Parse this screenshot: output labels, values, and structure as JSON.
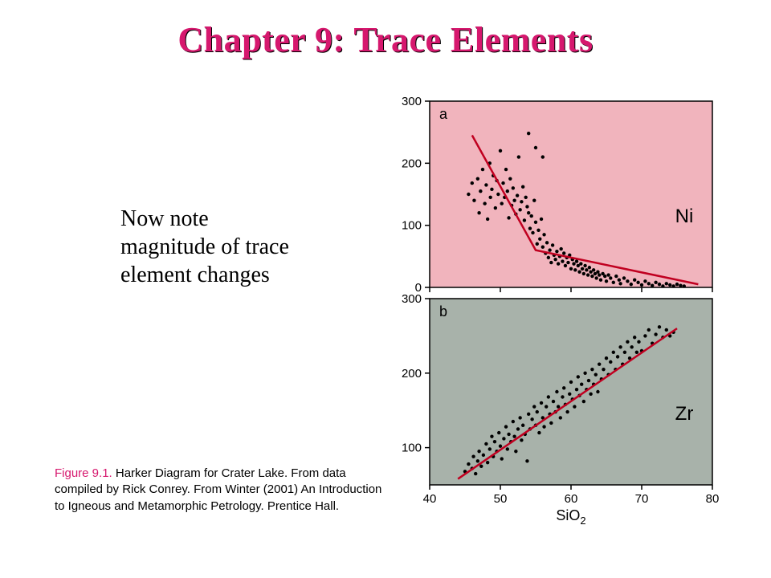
{
  "title": "Chapter 9: Trace Elements",
  "note": "Now note magnitude of trace element changes",
  "caption_lead": "Figure 9.1.",
  "caption_rest": "  Harker Diagram for Crater Lake. From data compiled by Rick Conrey. From Winter (2001) An Introduction to Igneous and Metamorphic Petrology. Prentice Hall.",
  "x_axis": {
    "label": "SiO",
    "label_sub": "2",
    "min": 40,
    "max": 80,
    "ticks": [
      40,
      50,
      60,
      70,
      80
    ],
    "fontsize": 18
  },
  "panel_a": {
    "type": "scatter",
    "panel_letter": "a",
    "element_label": "Ni",
    "background": "#f1b4bd",
    "border": "#000000",
    "point_color": "#000000",
    "point_radius": 2.2,
    "y_min": 0,
    "y_max": 300,
    "y_ticks": [
      0,
      100,
      200,
      300
    ],
    "trend_color": "#c00020",
    "trend_width": 2.5,
    "trend_points_xy": [
      [
        46,
        245
      ],
      [
        55,
        60
      ],
      [
        78,
        5
      ]
    ],
    "data_xy": [
      [
        45.5,
        150
      ],
      [
        46,
        168
      ],
      [
        46.3,
        140
      ],
      [
        46.8,
        175
      ],
      [
        47,
        120
      ],
      [
        47.2,
        155
      ],
      [
        47.5,
        190
      ],
      [
        47.8,
        135
      ],
      [
        48,
        165
      ],
      [
        48.2,
        110
      ],
      [
        48.5,
        200
      ],
      [
        48.6,
        145
      ],
      [
        48.8,
        158
      ],
      [
        49,
        180
      ],
      [
        49.3,
        128
      ],
      [
        49.5,
        172
      ],
      [
        49.7,
        150
      ],
      [
        50,
        220
      ],
      [
        50.2,
        135
      ],
      [
        50.4,
        168
      ],
      [
        50.6,
        145
      ],
      [
        50.8,
        190
      ],
      [
        51,
        155
      ],
      [
        51.2,
        112
      ],
      [
        51.4,
        175
      ],
      [
        51.6,
        132
      ],
      [
        51.8,
        160
      ],
      [
        52,
        140
      ],
      [
        52.2,
        118
      ],
      [
        52.4,
        148
      ],
      [
        52.6,
        210
      ],
      [
        52.8,
        125
      ],
      [
        53,
        138
      ],
      [
        53.2,
        162
      ],
      [
        53.4,
        108
      ],
      [
        53.6,
        145
      ],
      [
        53.8,
        130
      ],
      [
        54,
        120
      ],
      [
        54,
        248
      ],
      [
        54.2,
        95
      ],
      [
        54.4,
        115
      ],
      [
        54.6,
        88
      ],
      [
        54.8,
        140
      ],
      [
        55,
        225
      ],
      [
        55,
        105
      ],
      [
        55.2,
        70
      ],
      [
        55.4,
        92
      ],
      [
        55.6,
        78
      ],
      [
        55.8,
        110
      ],
      [
        56,
        65
      ],
      [
        56,
        210
      ],
      [
        56.2,
        85
      ],
      [
        56.4,
        55
      ],
      [
        56.6,
        72
      ],
      [
        56.8,
        48
      ],
      [
        57,
        60
      ],
      [
        57.2,
        40
      ],
      [
        57.4,
        68
      ],
      [
        57.6,
        52
      ],
      [
        57.8,
        45
      ],
      [
        58,
        58
      ],
      [
        58.2,
        38
      ],
      [
        58.4,
        50
      ],
      [
        58.6,
        62
      ],
      [
        58.8,
        42
      ],
      [
        59,
        55
      ],
      [
        59.2,
        35
      ],
      [
        59.4,
        48
      ],
      [
        59.6,
        40
      ],
      [
        59.8,
        52
      ],
      [
        60,
        30
      ],
      [
        60.2,
        45
      ],
      [
        60.4,
        38
      ],
      [
        60.6,
        28
      ],
      [
        60.8,
        42
      ],
      [
        61,
        35
      ],
      [
        61.2,
        25
      ],
      [
        61.4,
        38
      ],
      [
        61.6,
        30
      ],
      [
        61.8,
        22
      ],
      [
        62,
        35
      ],
      [
        62.2,
        28
      ],
      [
        62.4,
        20
      ],
      [
        62.6,
        32
      ],
      [
        62.8,
        25
      ],
      [
        63,
        18
      ],
      [
        63.2,
        28
      ],
      [
        63.4,
        22
      ],
      [
        63.6,
        15
      ],
      [
        63.8,
        25
      ],
      [
        64,
        20
      ],
      [
        64.2,
        12
      ],
      [
        64.5,
        22
      ],
      [
        64.8,
        18
      ],
      [
        65,
        10
      ],
      [
        65.3,
        20
      ],
      [
        65.6,
        15
      ],
      [
        66,
        8
      ],
      [
        66.4,
        18
      ],
      [
        66.8,
        12
      ],
      [
        67,
        6
      ],
      [
        67.5,
        15
      ],
      [
        68,
        10
      ],
      [
        68.5,
        5
      ],
      [
        69,
        12
      ],
      [
        69.5,
        8
      ],
      [
        70,
        4
      ],
      [
        70.5,
        10
      ],
      [
        71,
        6
      ],
      [
        71.5,
        3
      ],
      [
        72,
        8
      ],
      [
        72.5,
        5
      ],
      [
        73,
        2
      ],
      [
        73.5,
        6
      ],
      [
        74,
        4
      ],
      [
        74.5,
        2
      ],
      [
        75,
        5
      ],
      [
        75.5,
        3
      ],
      [
        76,
        2
      ]
    ]
  },
  "panel_b": {
    "type": "scatter",
    "panel_letter": "b",
    "element_label": "Zr",
    "background": "#a8b2aa",
    "border": "#000000",
    "point_color": "#000000",
    "point_radius": 2.2,
    "y_min": 50,
    "y_max": 300,
    "y_ticks": [
      100,
      200,
      300
    ],
    "trend_color": "#c00020",
    "trend_width": 2.5,
    "trend_points_xy": [
      [
        44,
        58
      ],
      [
        75,
        260
      ]
    ],
    "data_xy": [
      [
        45,
        68
      ],
      [
        45.5,
        78
      ],
      [
        46,
        72
      ],
      [
        46.2,
        88
      ],
      [
        46.5,
        65
      ],
      [
        46.8,
        82
      ],
      [
        47,
        95
      ],
      [
        47.3,
        75
      ],
      [
        47.6,
        90
      ],
      [
        48,
        105
      ],
      [
        48.2,
        80
      ],
      [
        48.5,
        98
      ],
      [
        48.8,
        115
      ],
      [
        49,
        88
      ],
      [
        49.2,
        108
      ],
      [
        49.5,
        95
      ],
      [
        49.8,
        120
      ],
      [
        50,
        102
      ],
      [
        50.2,
        85
      ],
      [
        50.5,
        112
      ],
      [
        50.8,
        128
      ],
      [
        51,
        98
      ],
      [
        51.2,
        118
      ],
      [
        51.5,
        108
      ],
      [
        51.8,
        135
      ],
      [
        52,
        115
      ],
      [
        52.2,
        95
      ],
      [
        52.5,
        125
      ],
      [
        52.8,
        140
      ],
      [
        53,
        110
      ],
      [
        53.2,
        130
      ],
      [
        53.5,
        118
      ],
      [
        53.8,
        82
      ],
      [
        54,
        145
      ],
      [
        54.2,
        125
      ],
      [
        54.5,
        138
      ],
      [
        54.8,
        155
      ],
      [
        55,
        130
      ],
      [
        55.2,
        148
      ],
      [
        55.5,
        120
      ],
      [
        55.8,
        160
      ],
      [
        56,
        140
      ],
      [
        56.2,
        128
      ],
      [
        56.5,
        155
      ],
      [
        56.8,
        168
      ],
      [
        57,
        145
      ],
      [
        57.2,
        133
      ],
      [
        57.5,
        162
      ],
      [
        57.8,
        148
      ],
      [
        58,
        175
      ],
      [
        58.2,
        155
      ],
      [
        58.5,
        140
      ],
      [
        58.8,
        168
      ],
      [
        59,
        180
      ],
      [
        59.2,
        158
      ],
      [
        59.5,
        148
      ],
      [
        59.8,
        172
      ],
      [
        60,
        188
      ],
      [
        60.2,
        165
      ],
      [
        60.5,
        155
      ],
      [
        60.8,
        178
      ],
      [
        61,
        195
      ],
      [
        61.2,
        170
      ],
      [
        61.5,
        185
      ],
      [
        61.8,
        162
      ],
      [
        62,
        200
      ],
      [
        62.2,
        178
      ],
      [
        62.5,
        190
      ],
      [
        62.8,
        172
      ],
      [
        63,
        205
      ],
      [
        63.2,
        185
      ],
      [
        63.5,
        198
      ],
      [
        63.8,
        175
      ],
      [
        64,
        212
      ],
      [
        64.3,
        192
      ],
      [
        64.6,
        205
      ],
      [
        65,
        220
      ],
      [
        65.3,
        198
      ],
      [
        65.6,
        215
      ],
      [
        66,
        228
      ],
      [
        66.3,
        205
      ],
      [
        66.6,
        222
      ],
      [
        67,
        235
      ],
      [
        67.3,
        212
      ],
      [
        67.6,
        228
      ],
      [
        68,
        242
      ],
      [
        68.3,
        220
      ],
      [
        68.6,
        235
      ],
      [
        69,
        248
      ],
      [
        69.3,
        228
      ],
      [
        69.6,
        242
      ],
      [
        70,
        230
      ],
      [
        70.5,
        250
      ],
      [
        71,
        258
      ],
      [
        71.5,
        240
      ],
      [
        72,
        252
      ],
      [
        72.5,
        262
      ],
      [
        73,
        248
      ],
      [
        73.5,
        258
      ],
      [
        74,
        250
      ],
      [
        74.5,
        255
      ]
    ]
  },
  "colors": {
    "title": "#d6186e",
    "caption_lead": "#d6186e",
    "text": "#000000",
    "page_bg": "#ffffff"
  },
  "typography": {
    "title_fontsize": 44,
    "title_weight": "bold",
    "note_fontsize": 28,
    "caption_fontsize": 15,
    "tick_fontsize": 15,
    "element_label_fontsize": 24,
    "panel_letter_fontsize": 18
  },
  "layout": {
    "aspect_per_panel": "1.55:1"
  }
}
